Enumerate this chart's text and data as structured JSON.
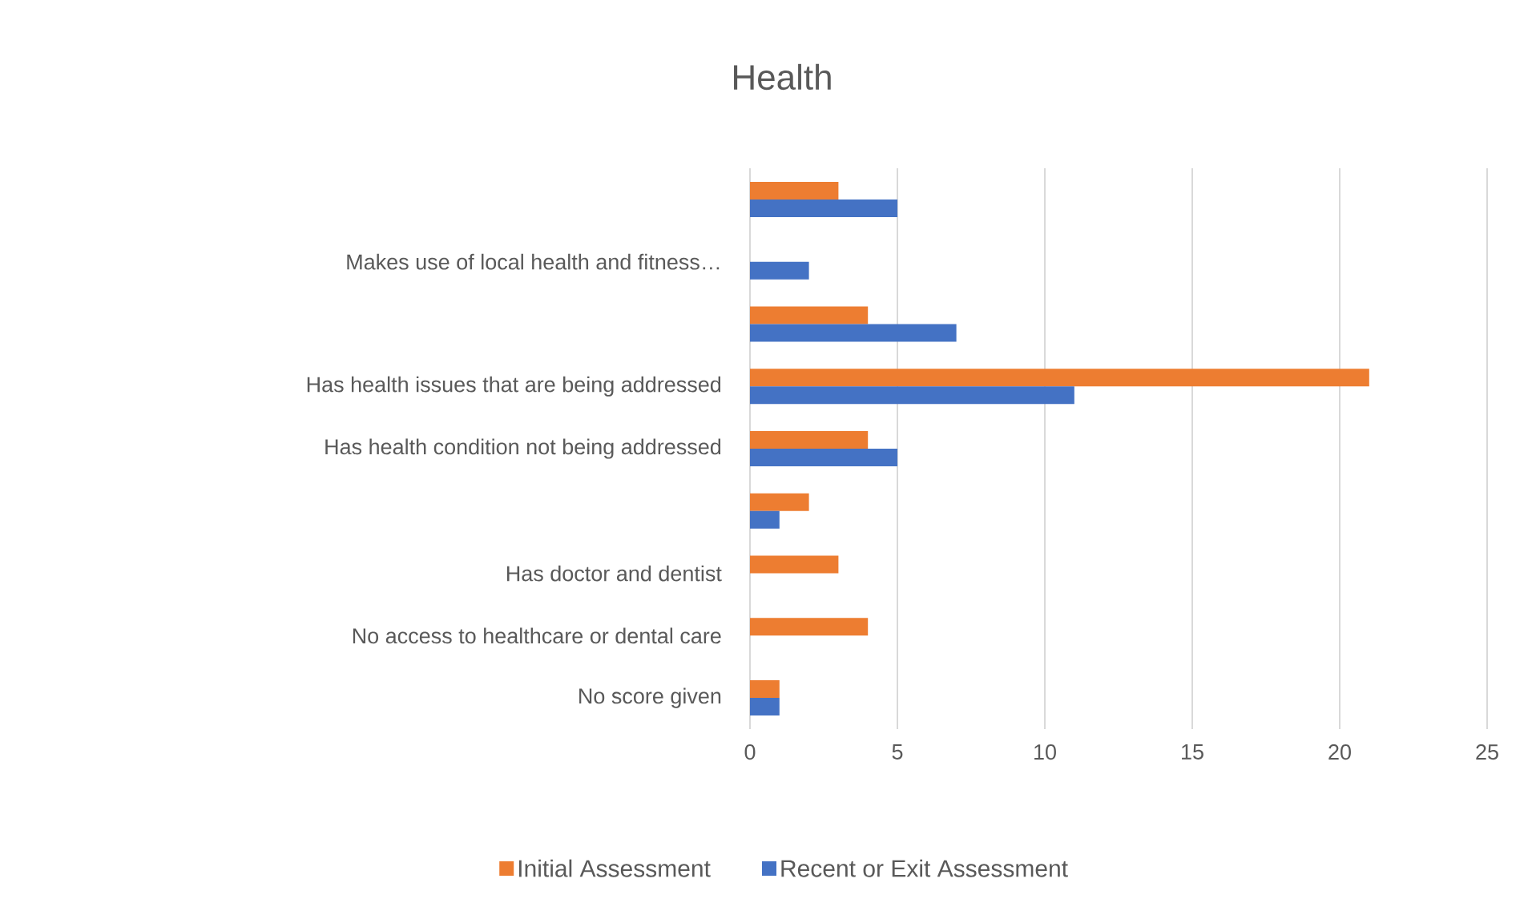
{
  "chart_data": {
    "type": "bar",
    "orientation": "horizontal",
    "title": "Health",
    "categories": [
      null,
      "Makes use of local health and fitness…",
      null,
      "Has health issues that are being addressed",
      "Has health condition not being addressed",
      null,
      "Has doctor and dentist",
      "No access to healthcare or dental care",
      "No score given"
    ],
    "series": [
      {
        "name": "Initial Assessment",
        "color": "#ed7d31",
        "values": [
          3,
          0,
          4,
          21,
          4,
          2,
          3,
          4,
          1
        ]
      },
      {
        "name": "Recent or Exit Assessment",
        "color": "#4472c4",
        "values": [
          5,
          2,
          7,
          11,
          5,
          1,
          0,
          0,
          1
        ]
      }
    ],
    "xlim": [
      0,
      25
    ],
    "xticks": [
      0,
      5,
      10,
      15,
      20,
      25
    ],
    "grid": "x",
    "legend": "bottom"
  }
}
